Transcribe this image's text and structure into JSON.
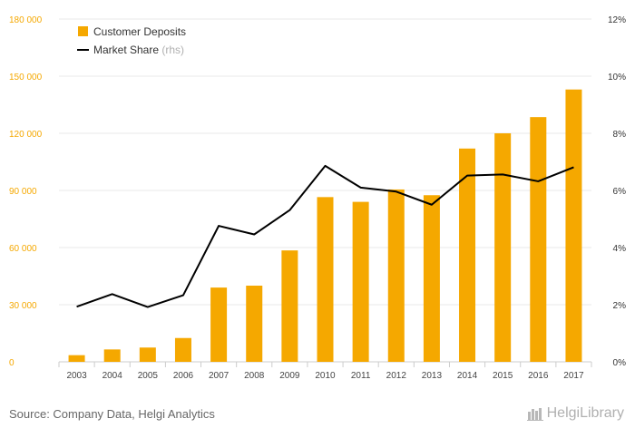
{
  "colors": {
    "bar": "#F5A800",
    "line": "#000000",
    "left_axis": "#F5A800",
    "right_axis": "#333333",
    "grid": "#e8e8e8"
  },
  "chart_data": {
    "type": "bar",
    "categories": [
      "2003",
      "2004",
      "2005",
      "2006",
      "2007",
      "2008",
      "2009",
      "2010",
      "2011",
      "2012",
      "2013",
      "2014",
      "2015",
      "2016",
      "2017"
    ],
    "series": [
      {
        "name": "Customer Deposits",
        "type": "bar",
        "axis": "left",
        "values": [
          3500,
          6500,
          7500,
          12500,
          39000,
          40000,
          58500,
          86500,
          84000,
          90500,
          87500,
          112000,
          120000,
          128500,
          143000
        ]
      },
      {
        "name": "Market Share",
        "name_suffix": "(rhs)",
        "type": "line",
        "axis": "right",
        "values": [
          1.93,
          2.37,
          1.92,
          2.33,
          4.76,
          4.46,
          5.31,
          6.86,
          6.1,
          5.96,
          5.5,
          6.52,
          6.56,
          6.32,
          6.81
        ]
      }
    ],
    "left_axis": {
      "ylim": [
        0,
        180000
      ],
      "ticks": [
        0,
        30000,
        60000,
        90000,
        120000,
        150000,
        180000
      ],
      "tick_labels": [
        "0",
        "30 000",
        "60 000",
        "90 000",
        "120 000",
        "150 000",
        "180 000"
      ]
    },
    "right_axis": {
      "ylim": [
        0,
        12
      ],
      "ticks": [
        0,
        2,
        4,
        6,
        8,
        10,
        12
      ],
      "tick_labels": [
        "0%",
        "2%",
        "4%",
        "6%",
        "8%",
        "10%",
        "12%"
      ]
    },
    "grid": true,
    "legend_position": "top-left"
  },
  "footer": {
    "source": "Source: Company Data, Helgi Analytics",
    "brand": "HelgiLibrary"
  }
}
